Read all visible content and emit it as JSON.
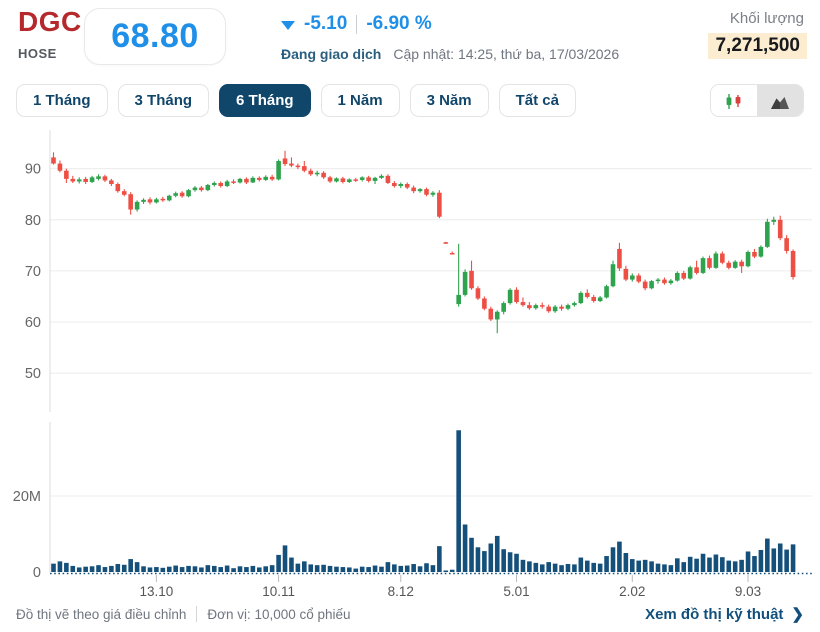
{
  "header": {
    "ticker": "DGC",
    "exchange": "HOSE",
    "price": "68.80",
    "change": "-5.10",
    "change_pct": "-6.90 %",
    "status": "Đang giao dịch",
    "updated": "Cập nhật: 14:25, thứ ba, 17/03/2026",
    "volume_label": "Khối lượng",
    "volume_value": "7,271,500"
  },
  "toolbar": {
    "ranges": [
      {
        "label": "1 Tháng",
        "active": false
      },
      {
        "label": "3 Tháng",
        "active": false
      },
      {
        "label": "6 Tháng",
        "active": true
      },
      {
        "label": "1 Năm",
        "active": false
      },
      {
        "label": "3 Năm",
        "active": false
      },
      {
        "label": "Tất cả",
        "active": false
      }
    ],
    "chart_types": [
      {
        "name": "candlestick",
        "active": false
      },
      {
        "name": "area",
        "active": true
      }
    ]
  },
  "footer": {
    "note_1": "Đồ thị vẽ theo giá điều chỉnh",
    "note_2": "Đơn vị: 10,000 cổ phiếu",
    "link": "Xem đồ thị kỹ thuật",
    "chevron": "❯"
  },
  "colors": {
    "accent_blue": "#1f8fe8",
    "navy": "#11466b",
    "ticker_red": "#b5282c",
    "highlight": "#fcecd0",
    "grid": "#ececec",
    "axis": "#dcdcdc",
    "up": "#2fa24e",
    "down": "#ee4f45",
    "volume_bar": "#15507a"
  },
  "chart_data": {
    "type": "candlestick+volume",
    "title": "DGC 6-month daily price and volume",
    "price_ylim": [
      46.5,
      96
    ],
    "price_yticks": [
      90,
      80,
      70,
      60,
      50
    ],
    "volume_ylim_millions": [
      0,
      39.6
    ],
    "volume_yticks": [
      {
        "v": 20,
        "label": "20M"
      },
      {
        "v": 0,
        "label": "0"
      }
    ],
    "xticks": [
      {
        "i": 16,
        "label": "13.10"
      },
      {
        "i": 35,
        "label": "10.11"
      },
      {
        "i": 54,
        "label": "8.12"
      },
      {
        "i": 72,
        "label": "5.01"
      },
      {
        "i": 90,
        "label": "2.02"
      },
      {
        "i": 108,
        "label": "9.03"
      }
    ],
    "series_format": [
      "open",
      "high",
      "low",
      "close",
      "volume_millions"
    ],
    "candles": [
      [
        92.2,
        93.2,
        90.8,
        91.0,
        2.2
      ],
      [
        91.0,
        91.6,
        89.3,
        89.6,
        2.8
      ],
      [
        89.6,
        90.0,
        87.2,
        88.0,
        2.4
      ],
      [
        88.0,
        88.6,
        87.2,
        87.5,
        1.6
      ],
      [
        87.5,
        88.3,
        87.1,
        87.9,
        1.2
      ],
      [
        88.0,
        88.4,
        87.0,
        87.4,
        1.4
      ],
      [
        87.4,
        88.6,
        87.2,
        88.3,
        1.5
      ],
      [
        88.0,
        88.9,
        87.7,
        88.5,
        1.8
      ],
      [
        88.5,
        88.8,
        87.4,
        87.7,
        1.3
      ],
      [
        87.7,
        88.0,
        86.6,
        87.0,
        1.6
      ],
      [
        87.0,
        87.3,
        85.3,
        85.6,
        2.1
      ],
      [
        85.6,
        86.0,
        84.6,
        84.9,
        1.9
      ],
      [
        85.0,
        85.4,
        81.0,
        82.0,
        3.4
      ],
      [
        82.0,
        83.8,
        81.6,
        83.5,
        2.6
      ],
      [
        83.5,
        84.2,
        83.1,
        83.9,
        1.5
      ],
      [
        84.0,
        84.4,
        83.0,
        83.4,
        1.2
      ],
      [
        83.4,
        84.3,
        83.2,
        84.0,
        1.3
      ],
      [
        84.1,
        84.5,
        83.5,
        83.8,
        1.1
      ],
      [
        83.8,
        84.9,
        83.6,
        84.7,
        1.4
      ],
      [
        84.7,
        85.5,
        84.4,
        85.2,
        1.7
      ],
      [
        85.3,
        85.6,
        84.3,
        84.6,
        1.3
      ],
      [
        84.6,
        86.0,
        84.4,
        85.8,
        1.6
      ],
      [
        85.8,
        86.6,
        85.5,
        86.3,
        1.5
      ],
      [
        86.3,
        86.6,
        85.5,
        85.8,
        1.2
      ],
      [
        85.8,
        87.0,
        85.6,
        86.8,
        1.8
      ],
      [
        86.8,
        87.5,
        86.5,
        87.2,
        1.6
      ],
      [
        87.2,
        87.5,
        86.3,
        86.6,
        1.3
      ],
      [
        86.6,
        87.8,
        86.4,
        87.5,
        1.7
      ],
      [
        87.5,
        87.9,
        87.0,
        87.3,
        1.0
      ],
      [
        87.3,
        88.2,
        87.1,
        88.0,
        1.5
      ],
      [
        88.0,
        88.3,
        87.0,
        87.3,
        1.3
      ],
      [
        87.3,
        88.5,
        87.2,
        88.2,
        1.6
      ],
      [
        88.2,
        88.5,
        87.5,
        87.8,
        1.2
      ],
      [
        87.8,
        88.7,
        87.6,
        88.4,
        1.5
      ],
      [
        88.4,
        88.8,
        87.6,
        87.9,
        1.8
      ],
      [
        87.9,
        91.8,
        87.7,
        91.5,
        4.5
      ],
      [
        92.0,
        93.5,
        90.5,
        90.9,
        7.0
      ],
      [
        91.0,
        92.2,
        90.3,
        90.6,
        3.8
      ],
      [
        90.6,
        91.0,
        89.9,
        90.3,
        2.2
      ],
      [
        90.5,
        91.5,
        89.3,
        89.6,
        2.8
      ],
      [
        89.6,
        90.0,
        88.6,
        88.9,
        2.0
      ],
      [
        88.9,
        89.6,
        88.5,
        89.2,
        1.8
      ],
      [
        89.2,
        89.5,
        88.0,
        88.3,
        1.9
      ],
      [
        88.3,
        88.6,
        87.2,
        87.5,
        1.6
      ],
      [
        87.5,
        88.3,
        87.3,
        88.1,
        1.4
      ],
      [
        88.1,
        88.4,
        87.1,
        87.4,
        1.3
      ],
      [
        87.4,
        88.1,
        87.2,
        87.9,
        1.2
      ],
      [
        87.9,
        88.2,
        87.4,
        87.8,
        0.9
      ],
      [
        87.8,
        88.5,
        87.5,
        88.3,
        1.4
      ],
      [
        88.3,
        88.6,
        87.3,
        87.6,
        1.3
      ],
      [
        87.6,
        88.4,
        87.0,
        88.2,
        1.7
      ],
      [
        88.2,
        88.9,
        88.0,
        88.6,
        1.4
      ],
      [
        88.6,
        88.9,
        87.0,
        87.2,
        2.6
      ],
      [
        87.2,
        87.6,
        86.3,
        86.6,
        2.0
      ],
      [
        86.6,
        87.3,
        86.2,
        87.0,
        1.6
      ],
      [
        87.0,
        87.3,
        86.0,
        86.3,
        1.7
      ],
      [
        86.3,
        86.7,
        85.2,
        85.6,
        2.1
      ],
      [
        85.6,
        86.2,
        85.3,
        86.0,
        1.5
      ],
      [
        86.0,
        86.3,
        84.6,
        84.9,
        2.3
      ],
      [
        84.9,
        85.6,
        84.5,
        85.3,
        1.8
      ],
      [
        85.3,
        85.8,
        80.3,
        80.6,
        6.8
      ],
      [
        75.6,
        75.7,
        75.3,
        75.4,
        0.4
      ],
      [
        73.5,
        73.8,
        73.2,
        73.4,
        0.6
      ],
      [
        63.5,
        75.3,
        63.0,
        65.3,
        37.3
      ],
      [
        65.3,
        70.3,
        65.0,
        69.8,
        12.5
      ],
      [
        70.0,
        72.0,
        66.3,
        66.6,
        9.0
      ],
      [
        66.6,
        67.0,
        64.3,
        64.6,
        6.5
      ],
      [
        64.6,
        65.0,
        62.3,
        62.6,
        5.5
      ],
      [
        62.6,
        63.0,
        60.2,
        60.5,
        7.5
      ],
      [
        60.5,
        62.3,
        57.8,
        62.0,
        9.5
      ],
      [
        62.0,
        64.0,
        61.5,
        63.7,
        6.0
      ],
      [
        63.7,
        66.6,
        63.4,
        66.3,
        5.2
      ],
      [
        66.3,
        66.8,
        63.6,
        63.9,
        4.8
      ],
      [
        63.9,
        64.8,
        63.0,
        63.3,
        3.2
      ],
      [
        63.3,
        63.9,
        62.4,
        62.7,
        2.8
      ],
      [
        62.7,
        63.6,
        62.4,
        63.3,
        2.4
      ],
      [
        63.3,
        63.8,
        62.6,
        63.0,
        2.0
      ],
      [
        63.0,
        63.4,
        61.8,
        62.1,
        2.6
      ],
      [
        62.1,
        63.3,
        61.8,
        63.0,
        2.2
      ],
      [
        63.0,
        63.4,
        62.2,
        62.6,
        1.8
      ],
      [
        62.6,
        63.6,
        62.3,
        63.3,
        2.1
      ],
      [
        63.3,
        64.0,
        63.0,
        63.7,
        2.0
      ],
      [
        63.7,
        66.0,
        63.5,
        65.7,
        3.8
      ],
      [
        65.7,
        66.4,
        64.6,
        64.9,
        3.0
      ],
      [
        64.9,
        65.3,
        63.8,
        64.1,
        2.4
      ],
      [
        64.1,
        65.1,
        63.9,
        64.8,
        2.2
      ],
      [
        64.8,
        67.3,
        64.6,
        67.0,
        4.2
      ],
      [
        67.0,
        72.0,
        66.8,
        71.3,
        6.5
      ],
      [
        74.3,
        75.5,
        70.0,
        70.5,
        8.0
      ],
      [
        70.4,
        71.0,
        68.0,
        68.3,
        5.0
      ],
      [
        68.3,
        69.5,
        67.9,
        69.1,
        3.4
      ],
      [
        69.1,
        69.5,
        67.6,
        67.9,
        3.0
      ],
      [
        67.9,
        68.3,
        66.2,
        66.6,
        3.2
      ],
      [
        66.6,
        68.2,
        66.4,
        68.0,
        2.8
      ],
      [
        68.0,
        68.6,
        67.5,
        68.3,
        2.2
      ],
      [
        68.3,
        68.7,
        67.3,
        67.6,
        2.0
      ],
      [
        67.6,
        68.4,
        67.3,
        68.1,
        1.8
      ],
      [
        68.1,
        69.9,
        67.9,
        69.6,
        3.6
      ],
      [
        69.6,
        70.0,
        68.2,
        68.5,
        2.6
      ],
      [
        68.5,
        71.0,
        68.3,
        70.7,
        4.0
      ],
      [
        70.7,
        72.0,
        69.3,
        69.6,
        3.5
      ],
      [
        69.6,
        72.8,
        69.4,
        72.5,
        4.8
      ],
      [
        72.5,
        73.0,
        70.3,
        70.6,
        3.8
      ],
      [
        70.6,
        73.8,
        70.4,
        73.4,
        4.6
      ],
      [
        73.4,
        73.8,
        71.3,
        71.6,
        3.9
      ],
      [
        71.6,
        72.0,
        70.3,
        70.6,
        3.0
      ],
      [
        70.6,
        72.1,
        70.4,
        71.8,
        2.8
      ],
      [
        71.8,
        72.2,
        69.6,
        70.9,
        3.2
      ],
      [
        70.9,
        74.0,
        70.7,
        73.7,
        5.4
      ],
      [
        73.7,
        74.3,
        72.5,
        72.8,
        4.2
      ],
      [
        72.8,
        75.0,
        72.6,
        74.7,
        5.8
      ],
      [
        74.7,
        80.2,
        74.5,
        79.6,
        8.8
      ],
      [
        79.6,
        80.6,
        79.0,
        80.0,
        6.2
      ],
      [
        80.0,
        80.8,
        76.0,
        76.4,
        7.5
      ],
      [
        76.4,
        77.0,
        73.4,
        73.9,
        5.9
      ],
      [
        73.9,
        74.2,
        68.3,
        68.8,
        7.27
      ]
    ]
  }
}
